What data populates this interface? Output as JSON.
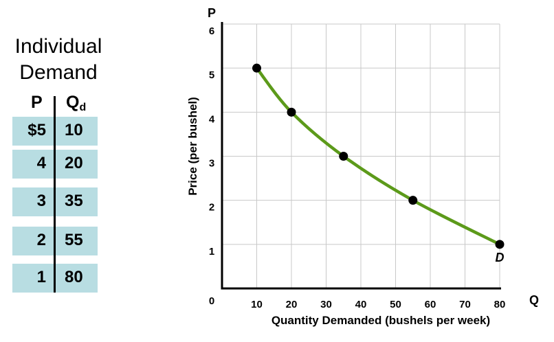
{
  "table": {
    "title_line1": "Individual",
    "title_line2": "Demand",
    "col_p": "P",
    "col_q": "Q",
    "col_q_sub": "d",
    "row_bg": "#b8dde2",
    "rows": [
      {
        "p": "$5",
        "q": "10"
      },
      {
        "p": "4",
        "q": "20"
      },
      {
        "p": "3",
        "q": "35"
      },
      {
        "p": "2",
        "q": "55"
      },
      {
        "p": "1",
        "q": "80"
      }
    ]
  },
  "chart_data": {
    "type": "line",
    "title": "",
    "xlabel": "Quantity Demanded (bushels per week)",
    "ylabel": "Price (per bushel)",
    "x_axis_letter": "Q",
    "y_axis_letter": "P",
    "origin_label": "0",
    "xlim": [
      0,
      80
    ],
    "ylim": [
      0,
      6
    ],
    "x_ticks": [
      10,
      20,
      30,
      40,
      50,
      60,
      70,
      80
    ],
    "y_ticks": [
      1,
      2,
      3,
      4,
      5,
      6
    ],
    "grid": true,
    "curve_color": "#5c9a1a",
    "series": [
      {
        "name": "D",
        "x": [
          10,
          20,
          35,
          55,
          80
        ],
        "y": [
          5,
          4,
          3,
          2,
          1
        ]
      }
    ]
  }
}
